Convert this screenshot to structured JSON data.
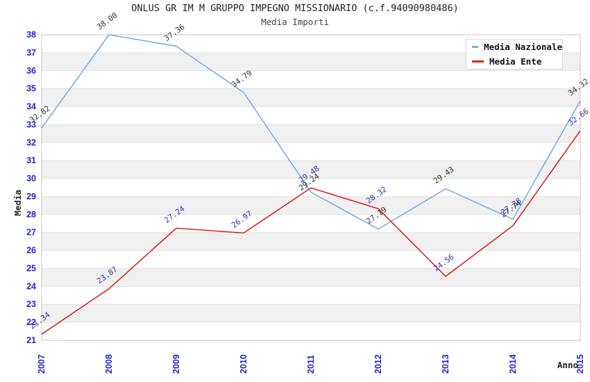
{
  "title": "ONLUS GR IM M GRUPPO IMPEGNO MISSIONARIO (c.f.94090980486)",
  "subtitle": "Media Importi",
  "axes": {
    "y_title": "Media",
    "x_title": "Anno",
    "y_ticks": [
      21,
      22,
      23,
      24,
      25,
      26,
      27,
      28,
      29,
      30,
      31,
      32,
      33,
      34,
      35,
      36,
      37,
      38
    ],
    "x_ticks": [
      "2007",
      "2008",
      "2009",
      "2010",
      "2011",
      "2012",
      "2013",
      "2014",
      "2015"
    ],
    "tick_color": "#2424cc"
  },
  "legend": {
    "items": [
      {
        "label": "Media Nazionale",
        "color": "#7aaee8"
      },
      {
        "label": "Media Ente",
        "color": "#dd2222"
      }
    ]
  },
  "colors": {
    "band_gray": "#f0f0f0",
    "gridline": "#e3e3e3",
    "plot_border": "#c8c8c8",
    "title_text": "#222222",
    "axis_title_text": "#222222"
  },
  "chart_data": {
    "type": "line",
    "x": [
      2007,
      2008,
      2009,
      2010,
      2011,
      2012,
      2013,
      2014,
      2015
    ],
    "series": [
      {
        "name": "Media Nazionale",
        "line_color": "#7aaee8",
        "label_color": "#333333",
        "values": [
          32.82,
          38.0,
          37.36,
          34.79,
          29.24,
          27.19,
          29.43,
          27.74,
          34.32
        ]
      },
      {
        "name": "Media Ente",
        "line_color": "#dd2222",
        "label_color": "#3434bb",
        "values": [
          21.34,
          23.87,
          27.24,
          26.97,
          29.48,
          28.32,
          24.56,
          27.38,
          32.66
        ]
      }
    ],
    "title": "ONLUS GR IM M GRUPPO IMPEGNO MISSIONARIO (c.f.94090980486)",
    "subtitle": "Media Importi",
    "xlabel": "Anno",
    "ylabel": "Media",
    "ylim": [
      21,
      38
    ],
    "grid": true,
    "alternating_bands": true,
    "legend_position": "top-right",
    "point_labels_format": "two-decimals"
  }
}
